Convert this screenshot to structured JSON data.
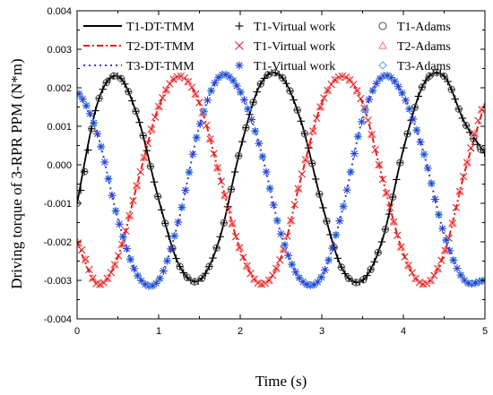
{
  "chart_data": {
    "type": "line",
    "xlabel": "Time (s)",
    "ylabel": "Driving torque of 3-RPR PPM (N*m)",
    "xlim": [
      0,
      5
    ],
    "ylim": [
      -0.004,
      0.004
    ],
    "xticks": [
      "0",
      "1",
      "2",
      "3",
      "4",
      "5"
    ],
    "yticks": [
      "-0.004",
      "-0.003",
      "-0.002",
      "-0.001",
      "0.000",
      "0.001",
      "0.002",
      "0.003",
      "0.004"
    ],
    "grid": false,
    "legend_position": "top",
    "series": [
      {
        "name": "T1-DT-TMM",
        "kind": "line",
        "style": "solid",
        "color": "#000000",
        "x": [
          0.0,
          0.25,
          0.5,
          0.75,
          1.0,
          1.25,
          1.5,
          1.75,
          2.0,
          2.25,
          2.5,
          2.75,
          3.0,
          3.25,
          3.5,
          3.75,
          4.0,
          4.25,
          4.5,
          4.75,
          5.0
        ],
        "y": [
          -0.001,
          0.0016,
          0.0023,
          0.0012,
          -0.0009,
          -0.0026,
          -0.003,
          -0.0019,
          0.0004,
          0.0021,
          0.0023,
          0.0011,
          -0.001,
          -0.0027,
          -0.003,
          -0.0019,
          0.0004,
          0.0021,
          0.0023,
          0.0011,
          0.0003
        ]
      },
      {
        "name": "T2-DT-TMM",
        "kind": "line",
        "style": "dashdot",
        "color": "#e02020",
        "x": [
          0.0,
          0.25,
          0.5,
          0.75,
          1.0,
          1.25,
          1.5,
          1.75,
          2.0,
          2.25,
          2.5,
          2.75,
          3.0,
          3.25,
          3.5,
          3.75,
          4.0,
          4.25,
          4.5,
          4.75,
          5.0
        ],
        "y": [
          -0.002,
          -0.0031,
          -0.0024,
          -0.0004,
          0.0015,
          0.0023,
          0.0016,
          -0.0003,
          -0.0022,
          -0.0031,
          -0.0024,
          -0.0003,
          0.0016,
          0.0023,
          0.0016,
          -0.0004,
          -0.0023,
          -0.0031,
          -0.0023,
          -0.0002,
          0.0016
        ]
      },
      {
        "name": "T3-DT-TMM",
        "kind": "line",
        "style": "dotted",
        "color": "#2b3fd6",
        "x": [
          0.0,
          0.25,
          0.5,
          0.75,
          1.0,
          1.25,
          1.5,
          1.75,
          2.0,
          2.25,
          2.5,
          2.75,
          3.0,
          3.25,
          3.5,
          3.75,
          4.0,
          4.25,
          4.5,
          4.75,
          5.0
        ],
        "y": [
          0.0019,
          0.0008,
          -0.0014,
          -0.0029,
          -0.003,
          -0.0014,
          0.001,
          0.0023,
          0.0019,
          0.0004,
          -0.0018,
          -0.003,
          -0.0029,
          -0.0012,
          0.0012,
          0.0023,
          0.0018,
          0.0003,
          -0.0018,
          -0.003,
          -0.003
        ]
      },
      {
        "name": "T1-Virtual work",
        "kind": "marker",
        "marker": "plus",
        "color": "#000000",
        "x": [
          0.0,
          0.25,
          0.5,
          0.75,
          1.0,
          1.25,
          1.5,
          1.75,
          2.0,
          2.25,
          2.5,
          2.75,
          3.0,
          3.25,
          3.5,
          3.75,
          4.0,
          4.25,
          4.5,
          4.75,
          5.0
        ],
        "y": [
          -0.001,
          0.0016,
          0.0023,
          0.0012,
          -0.0009,
          -0.0026,
          -0.003,
          -0.0019,
          0.0004,
          0.0021,
          0.0023,
          0.0011,
          -0.001,
          -0.0027,
          -0.003,
          -0.0019,
          0.0004,
          0.0021,
          0.0023,
          0.0011,
          0.0003
        ]
      },
      {
        "name": "T1-Virtual work",
        "kind": "marker",
        "marker": "x",
        "color": "#e02020",
        "x": [
          0.0,
          0.25,
          0.5,
          0.75,
          1.0,
          1.25,
          1.5,
          1.75,
          2.0,
          2.25,
          2.5,
          2.75,
          3.0,
          3.25,
          3.5,
          3.75,
          4.0,
          4.25,
          4.5,
          4.75,
          5.0
        ],
        "y": [
          -0.002,
          -0.0031,
          -0.0024,
          -0.0004,
          0.0015,
          0.0023,
          0.0016,
          -0.0003,
          -0.0022,
          -0.0031,
          -0.0024,
          -0.0003,
          0.0016,
          0.0023,
          0.0016,
          -0.0004,
          -0.0023,
          -0.0031,
          -0.0023,
          -0.0002,
          0.0016
        ]
      },
      {
        "name": "T1-Virtual work",
        "kind": "marker",
        "marker": "asterisk",
        "color": "#2b3fd6",
        "x": [
          0.0,
          0.25,
          0.5,
          0.75,
          1.0,
          1.25,
          1.5,
          1.75,
          2.0,
          2.25,
          2.5,
          2.75,
          3.0,
          3.25,
          3.5,
          3.75,
          4.0,
          4.25,
          4.5,
          4.75,
          5.0
        ],
        "y": [
          0.0019,
          0.0008,
          -0.0014,
          -0.0029,
          -0.003,
          -0.0014,
          0.001,
          0.0023,
          0.0019,
          0.0004,
          -0.0018,
          -0.003,
          -0.0029,
          -0.0012,
          0.0012,
          0.0023,
          0.0018,
          0.0003,
          -0.0018,
          -0.003,
          -0.003
        ]
      },
      {
        "name": "T1-Adams",
        "kind": "marker",
        "marker": "circle",
        "color": "#555555",
        "x": [
          0.0,
          0.25,
          0.5,
          0.75,
          1.0,
          1.25,
          1.5,
          1.75,
          2.0,
          2.25,
          2.5,
          2.75,
          3.0,
          3.25,
          3.5,
          3.75,
          4.0,
          4.25,
          4.5,
          4.75,
          5.0
        ],
        "y": [
          -0.001,
          0.0016,
          0.0023,
          0.0012,
          -0.0009,
          -0.0026,
          -0.003,
          -0.0019,
          0.0004,
          0.0021,
          0.0023,
          0.0011,
          -0.001,
          -0.0027,
          -0.003,
          -0.0019,
          0.0004,
          0.0021,
          0.0023,
          0.0011,
          0.0003
        ]
      },
      {
        "name": "T2-Adams",
        "kind": "marker",
        "marker": "triangle",
        "color": "#ff7f7f",
        "x": [
          0.0,
          0.25,
          0.5,
          0.75,
          1.0,
          1.25,
          1.5,
          1.75,
          2.0,
          2.25,
          2.5,
          2.75,
          3.0,
          3.25,
          3.5,
          3.75,
          4.0,
          4.25,
          4.5,
          4.75,
          5.0
        ],
        "y": [
          -0.002,
          -0.0031,
          -0.0024,
          -0.0004,
          0.0015,
          0.0023,
          0.0016,
          -0.0003,
          -0.0022,
          -0.0031,
          -0.0024,
          -0.0003,
          0.0016,
          0.0023,
          0.0016,
          -0.0004,
          -0.0023,
          -0.0031,
          -0.0023,
          -0.0002,
          0.0016
        ]
      },
      {
        "name": "T3-Adams",
        "kind": "marker",
        "marker": "diamond",
        "color": "#5aa8d8",
        "x": [
          0.0,
          0.25,
          0.5,
          0.75,
          1.0,
          1.25,
          1.5,
          1.75,
          2.0,
          2.25,
          2.5,
          2.75,
          3.0,
          3.25,
          3.5,
          3.75,
          4.0,
          4.25,
          4.5,
          4.75,
          5.0
        ],
        "y": [
          0.0019,
          0.0008,
          -0.0014,
          -0.0029,
          -0.003,
          -0.0014,
          0.001,
          0.0023,
          0.0019,
          0.0004,
          -0.0018,
          -0.003,
          -0.0029,
          -0.0012,
          0.0012,
          0.0023,
          0.0018,
          0.0003,
          -0.0018,
          -0.003,
          -0.003
        ]
      }
    ]
  }
}
